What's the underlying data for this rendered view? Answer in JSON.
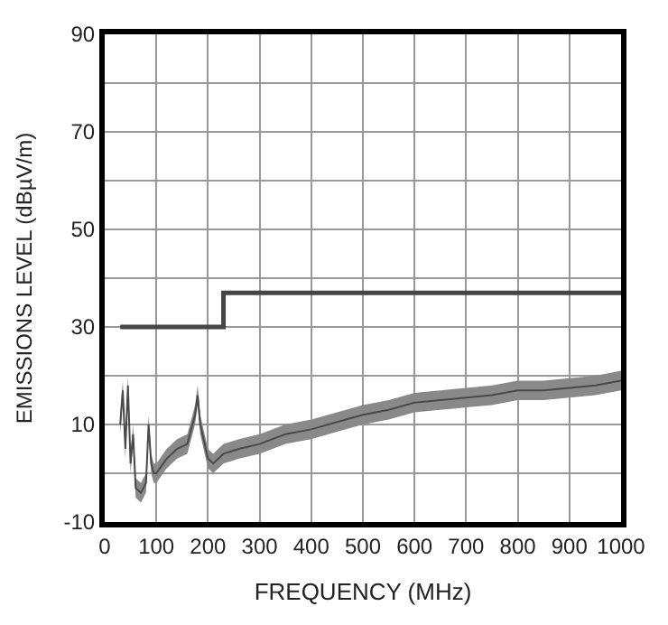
{
  "chart_data": {
    "type": "line",
    "xlabel": "FREQUENCY (MHz)",
    "ylabel": "EMISSIONS LEVEL (dBµV/m)",
    "xlim": [
      0,
      1000
    ],
    "xticks": [
      0,
      100,
      200,
      300,
      400,
      500,
      600,
      700,
      800,
      900,
      1000
    ],
    "ylim": [
      -10,
      90
    ],
    "yticks": [
      -10,
      {
        "value": 0,
        "label": null
      },
      10,
      {
        "value": 20,
        "label": null
      },
      30,
      {
        "value": 40,
        "label": null
      },
      50,
      {
        "value": 60,
        "label": null
      },
      70,
      {
        "value": 80,
        "label": null
      },
      90
    ],
    "grid": true,
    "marker": "none",
    "line_style": "solid",
    "series": [
      {
        "type": "step",
        "color": "#454545",
        "x": [
          30,
          230,
          230,
          1000
        ],
        "values": [
          30,
          30,
          37,
          37
        ]
      },
      {
        "color": "#4a4a4a",
        "x": [
          30,
          35,
          40,
          45,
          50,
          55,
          60,
          70,
          80,
          85,
          90,
          95,
          100,
          120,
          140,
          160,
          175,
          180,
          185,
          200,
          210,
          230,
          260,
          300,
          350,
          400,
          450,
          500,
          550,
          600,
          650,
          700,
          750,
          800,
          850,
          900,
          950,
          1000
        ],
        "values": [
          10,
          17,
          5,
          18,
          2,
          8,
          -3,
          -4,
          -2,
          10,
          2,
          0,
          0,
          3,
          5,
          6,
          12,
          16,
          10,
          3,
          2,
          4,
          5,
          6,
          8,
          9,
          10.5,
          12,
          13,
          14.5,
          15,
          15.5,
          16,
          17,
          17,
          17.5,
          18,
          19
        ],
        "lower": [
          8,
          15,
          3,
          16,
          0,
          6,
          -5,
          -6,
          -4,
          8,
          0,
          -2,
          -2,
          1,
          3,
          4,
          10,
          14,
          8,
          1,
          0,
          2,
          3,
          4,
          6,
          7,
          8.5,
          10,
          11,
          12.5,
          13,
          13.5,
          14,
          15,
          15,
          15.5,
          16,
          17
        ],
        "upper": [
          12,
          19,
          7,
          20,
          4,
          10,
          -1,
          -2,
          0,
          12,
          4,
          2,
          2,
          5,
          7,
          8,
          14,
          18,
          12,
          5,
          4,
          6,
          7,
          8,
          10,
          11,
          12.5,
          14,
          15,
          16.5,
          17,
          17.5,
          18,
          19,
          19,
          19.5,
          20,
          21
        ]
      }
    ]
  }
}
